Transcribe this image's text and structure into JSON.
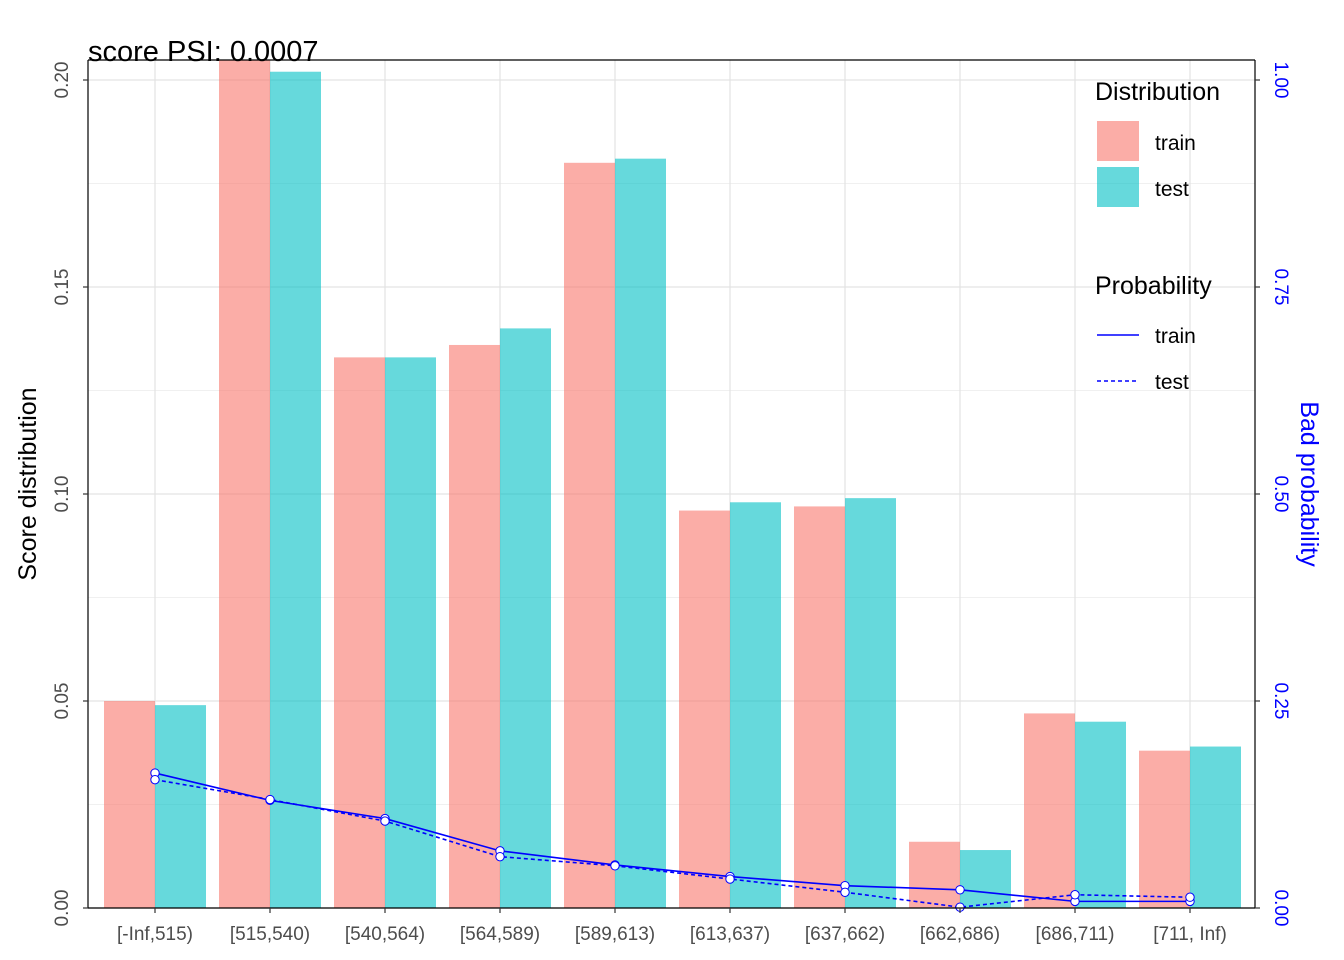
{
  "chart_data": {
    "type": "bar",
    "title": "score PSI: 0.0007",
    "categories": [
      "[-Inf,515)",
      "[515,540)",
      "[540,564)",
      "[564,589)",
      "[589,613)",
      "[613,637)",
      "[637,662)",
      "[662,686)",
      "[686,711)",
      "[711, Inf)"
    ],
    "series": [
      {
        "name": "train",
        "color": "#F8766D",
        "values": [
          0.05,
          0.206,
          0.133,
          0.136,
          0.18,
          0.096,
          0.097,
          0.016,
          0.047,
          0.038
        ]
      },
      {
        "name": "test",
        "color": "#00BFC4",
        "values": [
          0.049,
          0.202,
          0.133,
          0.14,
          0.181,
          0.098,
          0.099,
          0.014,
          0.045,
          0.039
        ]
      }
    ],
    "lines": [
      {
        "name": "train",
        "style": "solid",
        "color": "#0000FF",
        "values": [
          0.163,
          0.13,
          0.108,
          0.069,
          0.052,
          0.038,
          0.027,
          0.022,
          0.008,
          0.008
        ]
      },
      {
        "name": "test",
        "style": "dashed",
        "color": "#0000FF",
        "values": [
          0.155,
          0.131,
          0.105,
          0.062,
          0.051,
          0.035,
          0.019,
          0.001,
          0.016,
          0.013
        ]
      }
    ],
    "ylabel": "Score distribution",
    "ylabel_right": "Bad probability",
    "ylim": [
      0,
      0.2
    ],
    "ylim_right": [
      0,
      1.0
    ],
    "yticks": [
      "0.00",
      "0.05",
      "0.10",
      "0.15",
      "0.20"
    ],
    "yticks_right": [
      "0.00",
      "0.25",
      "0.50",
      "0.75",
      "1.00"
    ],
    "grid": true,
    "legend": {
      "placement": "top-right",
      "distribution_title": "Distribution",
      "probability_title": "Probability",
      "items": [
        "train",
        "test"
      ]
    }
  }
}
